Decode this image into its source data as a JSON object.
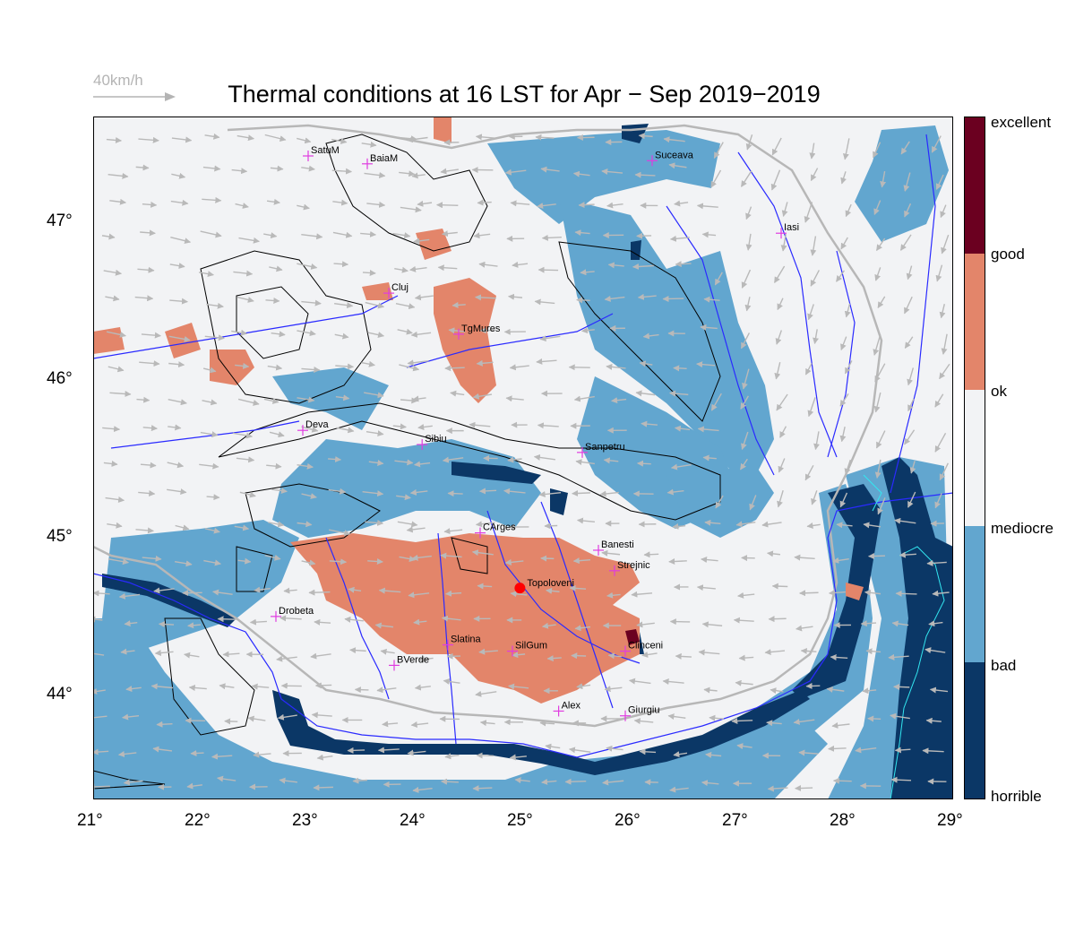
{
  "title": "Thermal conditions at 16 LST for Apr − Sep  2019−2019",
  "wind_scale_label": "40km/h",
  "map": {
    "lon_range": [
      21,
      29
    ],
    "lat_range": [
      43.35,
      47.68
    ],
    "x_ticks": [
      "21°",
      "22°",
      "23°",
      "24°",
      "25°",
      "26°",
      "27°",
      "28°",
      "29°"
    ],
    "y_ticks": [
      "44°",
      "45°",
      "46°",
      "47°"
    ],
    "colors": {
      "horrible": "#0b3766",
      "bad": "#62a6cf",
      "mediocre": "#f2f3f5",
      "ok": "#f2f3f5",
      "good": "#e3856a",
      "excellent": "#6b0020",
      "rivers": "#2a2aff",
      "borders": "#b7b7b7",
      "city_marker": "#e03ce0",
      "highlight_city": "#ff0000"
    }
  },
  "colorbar": {
    "labels": [
      "excellent",
      "good",
      "ok",
      "mediocre",
      "bad",
      "horrible"
    ]
  },
  "cities": [
    {
      "name": "SatuM",
      "lon": 23.0,
      "lat": 47.43
    },
    {
      "name": "BaiaM",
      "lon": 23.55,
      "lat": 47.38
    },
    {
      "name": "Suceava",
      "lon": 26.2,
      "lat": 47.4
    },
    {
      "name": "Iasi",
      "lon": 27.4,
      "lat": 46.94
    },
    {
      "name": "Cluj",
      "lon": 23.75,
      "lat": 46.56
    },
    {
      "name": "TgMures",
      "lon": 24.4,
      "lat": 46.3
    },
    {
      "name": "Deva",
      "lon": 22.95,
      "lat": 45.69
    },
    {
      "name": "Sibiu",
      "lon": 24.06,
      "lat": 45.6
    },
    {
      "name": "Sanpetru",
      "lon": 25.55,
      "lat": 45.55
    },
    {
      "name": "CArges",
      "lon": 24.6,
      "lat": 45.04
    },
    {
      "name": "Banesti",
      "lon": 25.7,
      "lat": 44.93
    },
    {
      "name": "Strejnic",
      "lon": 25.85,
      "lat": 44.8
    },
    {
      "name": "Drobeta",
      "lon": 22.7,
      "lat": 44.51
    },
    {
      "name": "Slatina",
      "lon": 24.3,
      "lat": 44.33
    },
    {
      "name": "SilGum",
      "lon": 24.9,
      "lat": 44.29
    },
    {
      "name": "Clinceni",
      "lon": 25.95,
      "lat": 44.29
    },
    {
      "name": "BVerde",
      "lon": 23.8,
      "lat": 44.2
    },
    {
      "name": "Alex",
      "lon": 25.33,
      "lat": 43.91
    },
    {
      "name": "Giurgiu",
      "lon": 25.95,
      "lat": 43.88
    }
  ],
  "highlight_city": {
    "name": "Topoloveni",
    "lon": 24.97,
    "lat": 44.69
  }
}
